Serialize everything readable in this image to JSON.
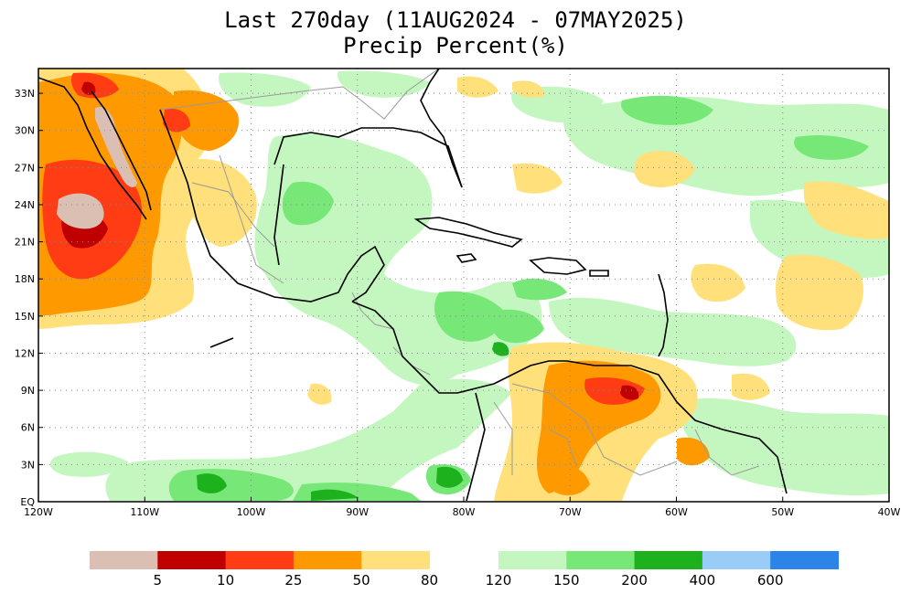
{
  "title": {
    "line1": "Last 270day (11AUG2024 - 07MAY2025)",
    "line2": "Precip Percent(%)"
  },
  "map": {
    "lat_labels": [
      {
        "lat": 33,
        "label": "33N"
      },
      {
        "lat": 30,
        "label": "30N"
      },
      {
        "lat": 27,
        "label": "27N"
      },
      {
        "lat": 24,
        "label": "24N"
      },
      {
        "lat": 21,
        "label": "21N"
      },
      {
        "lat": 18,
        "label": "18N"
      },
      {
        "lat": 15,
        "label": "15N"
      },
      {
        "lat": 12,
        "label": "12N"
      },
      {
        "lat": 9,
        "label": "9N"
      },
      {
        "lat": 6,
        "label": "6N"
      },
      {
        "lat": 3,
        "label": "3N"
      },
      {
        "lat": 0,
        "label": "EQ"
      }
    ],
    "lon_labels": [
      {
        "lon": -120,
        "label": "120W"
      },
      {
        "lon": -110,
        "label": "110W"
      },
      {
        "lon": -100,
        "label": "100W"
      },
      {
        "lon": -90,
        "label": "90W"
      },
      {
        "lon": -80,
        "label": "80W"
      },
      {
        "lon": -70,
        "label": "70W"
      },
      {
        "lon": -60,
        "label": "60W"
      },
      {
        "lon": -50,
        "label": "50W"
      },
      {
        "lon": -40,
        "label": "40W"
      }
    ],
    "lat_range": [
      0,
      35
    ],
    "lon_range": [
      -120,
      -40
    ],
    "grid": "dotted"
  },
  "colorbar": {
    "dry": [
      {
        "color": "#dbbfb3",
        "label": ""
      },
      {
        "color": "#c00000",
        "label": "5"
      },
      {
        "color": "#ff3c14",
        "label": "10"
      },
      {
        "color": "#ff9900",
        "label": "25"
      },
      {
        "color": "#ffe07a",
        "label": "50"
      },
      {
        "color": "",
        "label": "80"
      }
    ],
    "wet": [
      {
        "color": "#c4f7c0",
        "label": "120"
      },
      {
        "color": "#77e877",
        "label": "150"
      },
      {
        "color": "#1db11d",
        "label": "200"
      },
      {
        "color": "#99ccf7",
        "label": "400"
      },
      {
        "color": "#2c84e8",
        "label": "600"
      }
    ]
  },
  "colors": {
    "dry_dark": "#c00000",
    "dry_red": "#ff3c14",
    "dry_orange": "#ff9900",
    "dry_yellow": "#ffe07a",
    "dry_pink": "#dbbfb3",
    "wet_light": "#c4f7c0",
    "wet_mid": "#77e877",
    "wet_dark": "#1db11d",
    "coast": "#000000",
    "borders": "#999999"
  }
}
